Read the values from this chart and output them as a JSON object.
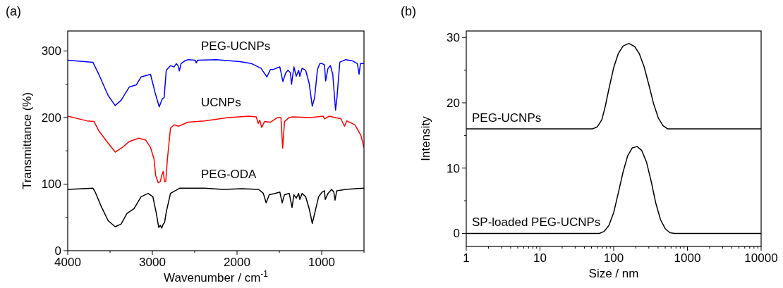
{
  "chart_data": [
    {
      "type": "line",
      "title": "(a)",
      "xlabel": "Wavenumber / cm$^{-1}$",
      "ylabel": "Transmittance (%)",
      "xlim": [
        4000,
        500
      ],
      "ylim": [
        0,
        330
      ],
      "xticks": [
        4000,
        {
          "value": 3500,
          "label": null
        },
        3000,
        {
          "value": 2500,
          "label": null
        },
        2000,
        {
          "value": 1500,
          "label": null
        },
        1000,
        {
          "value": 500,
          "label": null
        }
      ],
      "yticks": [
        0,
        {
          "value": 50,
          "label": null
        },
        100,
        {
          "value": 150,
          "label": null
        },
        200,
        {
          "value": 250,
          "label": null
        },
        300
      ],
      "grid": false,
      "marker": "none",
      "line_style": "solid",
      "series": [
        {
          "name": "PEG-UCNPs",
          "color": "#0000ff",
          "x": [
            4000,
            3703,
            3633,
            3522,
            3439,
            3369,
            3272,
            3189,
            3133,
            3022,
            2967,
            2919,
            2883,
            2861,
            2836,
            2786,
            2744,
            2717,
            2697,
            2681,
            2661,
            2619,
            2578,
            2494,
            2481,
            2467,
            2244,
            1967,
            1828,
            1717,
            1647,
            1606,
            1578,
            1494,
            1458,
            1425,
            1397,
            1369,
            1356,
            1328,
            1300,
            1272,
            1258,
            1231,
            1189,
            1147,
            1111,
            1083,
            1050,
            1022,
            994,
            967,
            953,
            925,
            897,
            869,
            836,
            819,
            786,
            717,
            633,
            578,
            558,
            542,
            500
          ],
          "values": [
            286,
            283,
            265,
            233,
            218,
            226,
            246,
            249,
            261,
            265,
            237,
            216,
            228,
            230,
            271,
            278,
            276,
            281,
            278,
            270,
            281,
            285,
            287,
            286,
            282,
            286,
            287,
            284,
            281,
            274,
            261,
            272,
            272,
            276,
            254,
            267,
            271,
            267,
            250,
            276,
            262,
            271,
            262,
            274,
            271,
            251,
            217,
            230,
            272,
            281,
            281,
            279,
            255,
            274,
            278,
            265,
            211,
            230,
            283,
            287,
            285,
            281,
            265,
            281,
            281
          ]
        },
        {
          "name": "UCNPs",
          "color": "#ff0000",
          "x": [
            4000,
            3772,
            3689,
            3633,
            3550,
            3439,
            3356,
            3272,
            3161,
            3078,
            3022,
            2981,
            2961,
            2931,
            2906,
            2889,
            2872,
            2856,
            2842,
            2822,
            2786,
            2744,
            2689,
            2578,
            2383,
            2106,
            1856,
            1772,
            1750,
            1731,
            1708,
            1675,
            1606,
            1522,
            1481,
            1461,
            1439,
            1383,
            1342,
            1133,
            981,
            967,
            911,
            772,
            731,
            703,
            606,
            536,
            500
          ],
          "values": [
            202,
            195,
            194,
            180,
            166,
            148,
            155,
            164,
            169,
            166,
            155,
            138,
            113,
            102,
            104,
            113,
            119,
            104,
            104,
            138,
            184,
            189,
            187,
            193,
            195,
            200,
            202,
            201,
            191,
            196,
            185,
            194,
            193,
            200,
            200,
            154,
            194,
            200,
            201,
            200,
            202,
            198,
            202,
            198,
            187,
            195,
            189,
            173,
            155
          ]
        },
        {
          "name": "PEG-ODA",
          "color": "#000000",
          "x": [
            4000,
            3703,
            3675,
            3606,
            3522,
            3439,
            3369,
            3300,
            3217,
            3133,
            3050,
            2994,
            2953,
            2925,
            2906,
            2889,
            2872,
            2856,
            2836,
            2786,
            2731,
            2675,
            2383,
            2161,
            1939,
            1744,
            1689,
            1656,
            1619,
            1550,
            1494,
            1467,
            1439,
            1383,
            1350,
            1328,
            1300,
            1272,
            1258,
            1231,
            1189,
            1147,
            1111,
            1083,
            1036,
            994,
            967,
            958,
            925,
            883,
            856,
            842,
            822,
            717,
            500
          ],
          "values": [
            92,
            94,
            88,
            67,
            45,
            36,
            40,
            56,
            63,
            81,
            86,
            81,
            56,
            35,
            38,
            34,
            40,
            42,
            58,
            86,
            90,
            94,
            94,
            92,
            93,
            92,
            86,
            72,
            84,
            86,
            88,
            72,
            84,
            86,
            65,
            84,
            79,
            86,
            77,
            86,
            81,
            63,
            41,
            56,
            81,
            88,
            90,
            77,
            86,
            92,
            88,
            76,
            90,
            92,
            94
          ]
        }
      ]
    },
    {
      "type": "line",
      "title": "(b)",
      "xlabel": "Size / nm",
      "ylabel": "Intensity",
      "log": "x",
      "xlim": [
        1,
        10000
      ],
      "ylim": [
        -2,
        31
      ],
      "xticks": [
        1,
        {
          "value": 2,
          "label": null
        },
        {
          "value": 3,
          "label": null
        },
        {
          "value": 4,
          "label": null
        },
        {
          "value": 5,
          "label": null
        },
        {
          "value": 6,
          "label": null
        },
        {
          "value": 7,
          "label": null
        },
        {
          "value": 8,
          "label": null
        },
        {
          "value": 9,
          "label": null
        },
        10,
        {
          "value": 20,
          "label": null
        },
        {
          "value": 30,
          "label": null
        },
        {
          "value": 40,
          "label": null
        },
        {
          "value": 50,
          "label": null
        },
        {
          "value": 60,
          "label": null
        },
        {
          "value": 70,
          "label": null
        },
        {
          "value": 80,
          "label": null
        },
        {
          "value": 90,
          "label": null
        },
        100,
        {
          "value": 200,
          "label": null
        },
        {
          "value": 300,
          "label": null
        },
        {
          "value": 400,
          "label": null
        },
        {
          "value": 500,
          "label": null
        },
        {
          "value": 600,
          "label": null
        },
        {
          "value": 700,
          "label": null
        },
        {
          "value": 800,
          "label": null
        },
        {
          "value": 900,
          "label": null
        },
        1000,
        {
          "value": 2000,
          "label": null
        },
        {
          "value": 3000,
          "label": null
        },
        {
          "value": 4000,
          "label": null
        },
        {
          "value": 5000,
          "label": null
        },
        {
          "value": 6000,
          "label": null
        },
        {
          "value": 7000,
          "label": null
        },
        {
          "value": 8000,
          "label": null
        },
        {
          "value": 9000,
          "label": null
        },
        10000
      ],
      "yticks": [
        0,
        {
          "value": 5,
          "label": null
        },
        10,
        {
          "value": 15,
          "label": null
        },
        20,
        {
          "value": 25,
          "label": null
        },
        30
      ],
      "grid": false,
      "marker": "none",
      "line_style": "solid",
      "series": [
        {
          "name": "PEG-UCNPs",
          "color": "#000000",
          "x": [
            1,
            51.5,
            59.6,
            69,
            77,
            86,
            100,
            115,
            134,
            161,
            193,
            223,
            259,
            299,
            347,
            402,
            466,
            540,
            10000
          ],
          "values": [
            16,
            16,
            16.3,
            17.4,
            19.5,
            22.1,
            25.4,
            27.5,
            28.7,
            29.1,
            28.6,
            27.5,
            25.5,
            22.8,
            19.9,
            17.7,
            16.5,
            16,
            16
          ]
        },
        {
          "name": "SP-loaded PEG-UCNPs",
          "color": "#000000",
          "x": [
            1,
            64,
            74,
            86,
            100,
            115,
            134,
            155,
            179,
            208,
            240,
            279,
            322,
            373,
            432,
            501,
            580,
            671,
            10000
          ],
          "values": [
            0,
            0,
            0.3,
            1.2,
            3.2,
            6.1,
            9.4,
            11.9,
            13.1,
            13.3,
            12.7,
            10.9,
            8,
            4.6,
            2.1,
            0.7,
            0.1,
            0,
            0
          ]
        }
      ]
    }
  ]
}
